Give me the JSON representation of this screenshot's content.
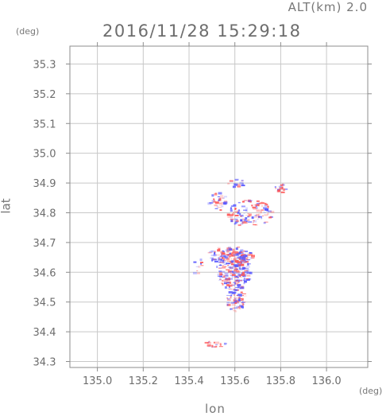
{
  "header": {
    "altitude": "ALT(km) 2.0",
    "timestamp": "2016/11/28 15:29:18"
  },
  "axes": {
    "x_unit": "(deg)",
    "y_unit": "(deg)",
    "x_label": "lon",
    "y_label": "lat"
  },
  "chart_data": {
    "type": "heatmap",
    "xlim": [
      134.88,
      136.18
    ],
    "ylim": [
      34.28,
      35.36
    ],
    "x_ticks": [
      135.0,
      135.2,
      135.4,
      135.6,
      135.8,
      136.0
    ],
    "x_tick_labels": [
      "135.0",
      "135.2",
      "135.4",
      "135.6",
      "135.8",
      "136.0"
    ],
    "y_ticks": [
      34.3,
      34.4,
      34.5,
      34.6,
      34.7,
      34.8,
      34.9,
      35.0,
      35.1,
      35.2,
      35.3
    ],
    "y_tick_labels": [
      "34.3",
      "34.4",
      "34.5",
      "34.6",
      "34.7",
      "34.8",
      "34.9",
      "35.0",
      "35.1",
      "35.2",
      "35.3"
    ],
    "grid": true,
    "colors": {
      "positive": "#ff5a5a",
      "negative": "#5a5aff",
      "axis": "#8c8c8c",
      "grid": "#c8c8c8"
    },
    "clusters": [
      {
        "lon": 135.59,
        "lat": 34.615,
        "rlon": 0.075,
        "rlat": 0.075,
        "n": 260
      },
      {
        "lon": 135.6,
        "lat": 34.51,
        "rlon": 0.04,
        "rlat": 0.04,
        "n": 70
      },
      {
        "lon": 135.62,
        "lat": 34.655,
        "rlon": 0.06,
        "rlat": 0.02,
        "n": 60
      },
      {
        "lon": 135.52,
        "lat": 34.66,
        "rlon": 0.04,
        "rlat": 0.025,
        "n": 40
      },
      {
        "lon": 135.66,
        "lat": 34.8,
        "rlon": 0.1,
        "rlat": 0.045,
        "n": 120
      },
      {
        "lon": 135.52,
        "lat": 34.84,
        "rlon": 0.04,
        "rlat": 0.03,
        "n": 35
      },
      {
        "lon": 135.6,
        "lat": 34.9,
        "rlon": 0.04,
        "rlat": 0.015,
        "n": 20
      },
      {
        "lon": 135.8,
        "lat": 34.88,
        "rlon": 0.03,
        "rlat": 0.02,
        "n": 15
      },
      {
        "lon": 135.5,
        "lat": 34.36,
        "rlon": 0.06,
        "rlat": 0.01,
        "n": 20
      },
      {
        "lon": 135.44,
        "lat": 34.62,
        "rlon": 0.03,
        "rlat": 0.03,
        "n": 10
      }
    ]
  }
}
